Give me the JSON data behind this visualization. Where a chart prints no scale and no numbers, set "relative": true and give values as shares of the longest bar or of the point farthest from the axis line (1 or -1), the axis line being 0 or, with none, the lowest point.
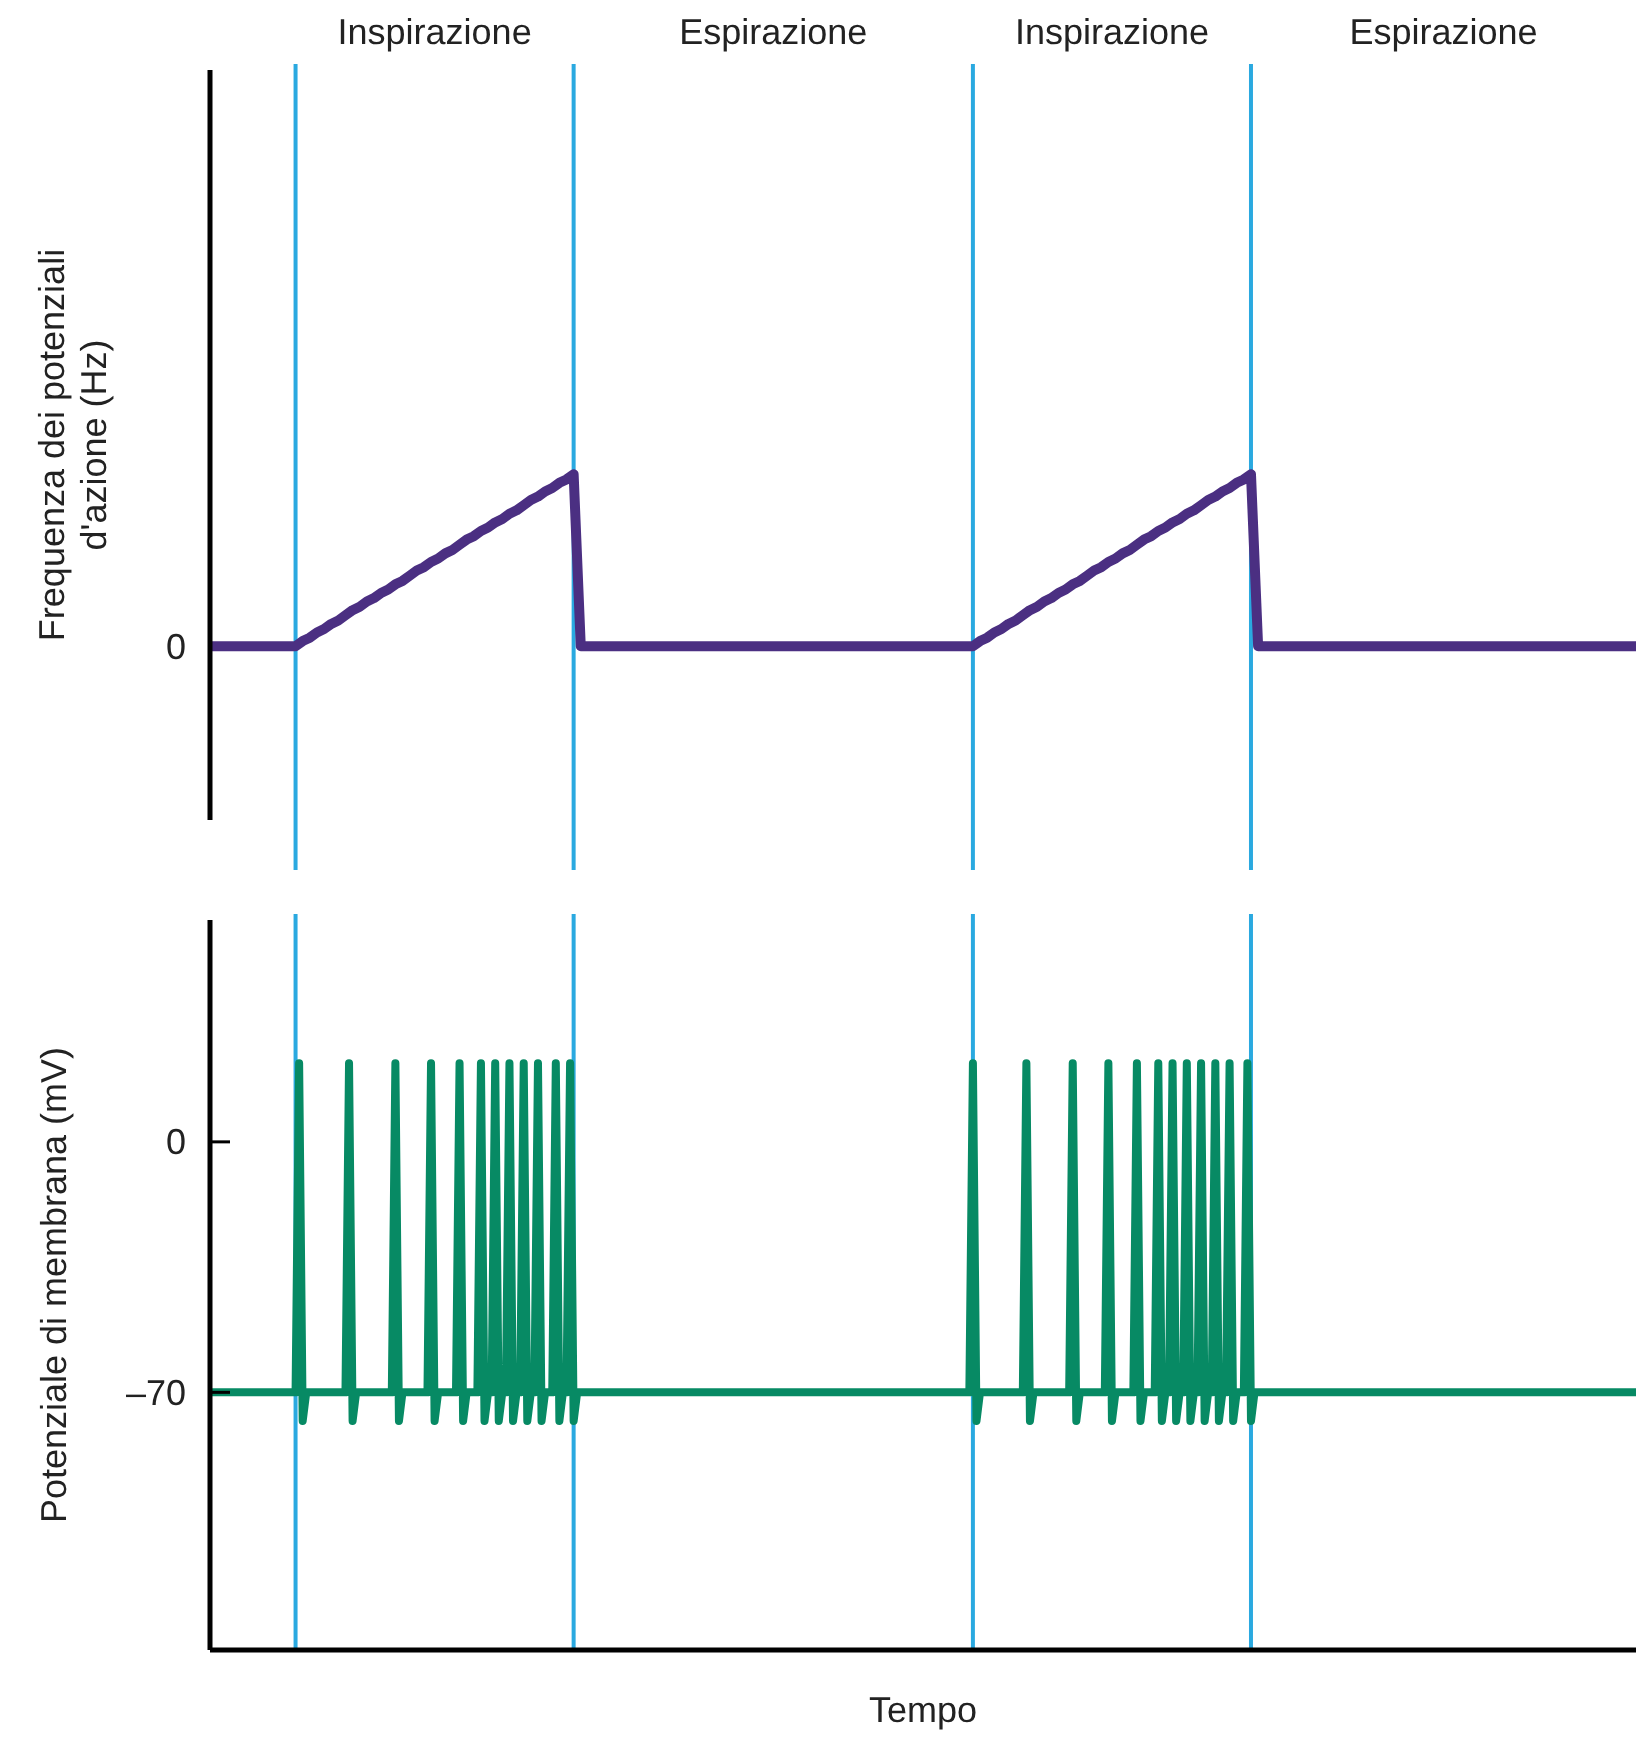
{
  "chart_data": [
    {
      "type": "line",
      "relative": true,
      "ylabel": "Frequenza dei potenziali d'azione (Hz)",
      "tick_labels": "y",
      "marker": "none",
      "line_style": "solid",
      "annotations": [
        "Inspirazione",
        "Espirazione",
        "Inspirazione",
        "Espirazione",
        "0"
      ],
      "categories": [
        null,
        null,
        null,
        null,
        null,
        null,
        null,
        null,
        null,
        null,
        null,
        null,
        null,
        null,
        null,
        null,
        null,
        null,
        null,
        null,
        null,
        null,
        null,
        null,
        null,
        null,
        null,
        null,
        null,
        null,
        null,
        null,
        null,
        null,
        null,
        null,
        null,
        null,
        null,
        null,
        null,
        null,
        null,
        null,
        null,
        null,
        null,
        null,
        null,
        null,
        null,
        null,
        null,
        null,
        null,
        null,
        null,
        null,
        null,
        null,
        null,
        null,
        null,
        null,
        null,
        null,
        null,
        null,
        null,
        null,
        null,
        null,
        null,
        null,
        null,
        null,
        null,
        null,
        null,
        null,
        null,
        null,
        null,
        null,
        null,
        null,
        null,
        null,
        null,
        null,
        null,
        null,
        null,
        null,
        null,
        null,
        null,
        null,
        null,
        null,
        null,
        null,
        null,
        null,
        null,
        null,
        null,
        null,
        null,
        null,
        null,
        null,
        null,
        null,
        null,
        null,
        null,
        null,
        null,
        null,
        null,
        null,
        null,
        null,
        null,
        null,
        null,
        null,
        null,
        null,
        null,
        null,
        null,
        null,
        null,
        null,
        null,
        null,
        null,
        null,
        null,
        null,
        null,
        null,
        null,
        null,
        null,
        null,
        null,
        null,
        null,
        null,
        null,
        null,
        null,
        null,
        null,
        null,
        null,
        null,
        null,
        null,
        null,
        null,
        null,
        null,
        null,
        null,
        null,
        null,
        null,
        null,
        null,
        null,
        null,
        null,
        null,
        null,
        null,
        null,
        null,
        null,
        null,
        null,
        null,
        null,
        null,
        null,
        null,
        null,
        null,
        null,
        null,
        null,
        null,
        null,
        null,
        null,
        null,
        null,
        null
      ],
      "series": [
        {
          "color": "#4b2f82",
          "values": [
            0,
            0,
            0,
            0,
            0,
            0,
            0,
            0,
            0,
            0,
            0,
            0,
            0,
            0.03,
            0.05,
            0.08,
            0.1,
            0.13,
            0.15,
            0.18,
            0.21,
            0.23,
            0.26,
            0.28,
            0.31,
            0.33,
            0.36,
            0.38,
            0.41,
            0.44,
            0.46,
            0.49,
            0.51,
            0.54,
            0.56,
            0.59,
            0.62,
            0.64,
            0.67,
            0.69,
            0.72,
            0.74,
            0.77,
            0.79,
            0.82,
            0.85,
            0.87,
            0.9,
            0.92,
            0.95,
            0.97,
            1,
            0,
            0,
            0,
            0,
            0,
            0,
            0,
            0,
            0,
            0,
            0,
            0,
            0,
            0,
            0,
            0,
            0,
            0,
            0,
            0,
            0,
            0,
            0,
            0,
            0,
            0,
            0,
            0,
            0,
            0,
            0,
            0,
            0,
            0,
            0,
            0,
            0,
            0,
            0,
            0,
            0,
            0,
            0,
            0,
            0,
            0,
            0,
            0,
            0,
            0,
            0,
            0,
            0,
            0,
            0,
            0,
            0.03,
            0.05,
            0.08,
            0.1,
            0.13,
            0.15,
            0.18,
            0.21,
            0.23,
            0.26,
            0.28,
            0.31,
            0.33,
            0.36,
            0.38,
            0.41,
            0.44,
            0.46,
            0.49,
            0.51,
            0.54,
            0.56,
            0.59,
            0.62,
            0.64,
            0.67,
            0.69,
            0.72,
            0.74,
            0.77,
            0.79,
            0.82,
            0.85,
            0.87,
            0.9,
            0.92,
            0.95,
            0.97,
            1,
            0,
            0,
            0,
            0,
            0,
            0,
            0,
            0,
            0,
            0,
            0,
            0,
            0,
            0,
            0,
            0,
            0,
            0,
            0,
            0,
            0,
            0,
            0,
            0,
            0,
            0,
            0,
            0,
            0,
            0,
            0,
            0,
            0,
            0,
            0,
            0,
            0,
            0,
            0,
            0,
            0,
            0,
            0,
            0,
            0,
            0,
            0,
            0,
            0,
            0,
            0,
            0,
            0,
            0
          ]
        }
      ]
    },
    {
      "type": "line",
      "ylabel": "Potenziale di membrana (mV)",
      "xlabel": "Tempo",
      "ylim": [
        -142,
        62
      ],
      "yticks": [
        {
          "value": -70,
          "label": "–70"
        },
        0
      ],
      "tick_labels": "y",
      "grid": false,
      "marker": "none",
      "line_style": "solid",
      "categories": [
        null,
        null,
        null,
        null,
        null,
        null,
        null,
        null,
        null,
        null,
        null,
        null,
        null,
        null,
        null,
        null,
        null,
        null,
        null,
        null,
        null,
        null,
        null,
        null,
        null,
        null,
        null,
        null,
        null,
        null,
        null,
        null,
        null,
        null,
        null,
        null,
        null,
        null,
        null,
        null,
        null,
        null,
        null,
        null,
        null,
        null,
        null,
        null,
        null,
        null,
        null,
        null,
        null,
        null,
        null,
        null,
        null,
        null,
        null,
        null,
        null,
        null,
        null,
        null,
        null,
        null,
        null,
        null,
        null,
        null,
        null,
        null,
        null,
        null,
        null,
        null,
        null,
        null,
        null,
        null,
        null,
        null,
        null,
        null,
        null,
        null,
        null,
        null,
        null,
        null,
        null,
        null,
        null,
        null,
        null,
        null,
        null,
        null,
        null,
        null,
        null,
        null,
        null,
        null,
        null,
        null,
        null,
        null,
        null,
        null,
        null,
        null,
        null,
        null,
        null,
        null,
        null,
        null,
        null,
        null,
        null,
        null,
        null,
        null,
        null,
        null,
        null,
        null,
        null,
        null,
        null,
        null,
        null,
        null,
        null,
        null,
        null,
        null,
        null,
        null,
        null,
        null,
        null,
        null,
        null,
        null,
        null,
        null,
        null,
        null,
        null,
        null,
        null,
        null,
        null,
        null,
        null,
        null,
        null,
        null,
        null,
        null,
        null,
        null,
        null,
        null,
        null,
        null,
        null,
        null,
        null,
        null,
        null,
        null,
        null,
        null,
        null,
        null,
        null,
        null,
        null,
        null,
        null,
        null,
        null,
        null,
        null,
        null,
        null,
        null,
        null,
        null,
        null,
        null,
        null,
        null,
        null,
        null,
        null,
        null,
        null,
        null,
        null,
        null,
        null,
        null,
        null,
        null,
        null,
        null,
        null,
        null,
        null,
        null,
        null,
        null,
        null,
        null,
        null,
        null,
        null,
        null,
        null,
        null,
        null,
        null,
        null,
        null,
        null,
        null,
        null,
        null,
        null,
        null,
        null,
        null,
        null,
        null,
        null,
        null,
        null,
        null,
        null,
        null,
        null,
        null,
        null,
        null,
        null,
        null,
        null,
        null,
        null,
        null,
        null,
        null,
        null,
        null,
        null,
        null,
        null,
        null,
        null,
        null,
        null,
        null,
        null,
        null,
        null,
        null,
        null,
        null,
        null,
        null,
        null,
        null,
        null,
        null,
        null,
        null,
        null,
        null,
        null,
        null,
        null,
        null,
        null,
        null,
        null,
        null,
        null,
        null,
        null,
        null,
        null,
        null,
        null,
        null,
        null,
        null,
        null,
        null,
        null,
        null,
        null,
        null,
        null,
        null,
        null,
        null,
        null,
        null,
        null,
        null,
        null,
        null,
        null,
        null,
        null,
        null,
        null,
        null,
        null,
        null,
        null,
        null,
        null,
        null,
        null,
        null,
        null,
        null,
        null,
        null,
        null,
        null,
        null,
        null,
        null,
        null,
        null,
        null,
        null,
        null,
        null,
        null,
        null,
        null,
        null,
        null,
        null,
        null,
        null,
        null,
        null,
        null,
        null,
        null,
        null,
        null,
        null,
        null,
        null,
        null,
        null,
        null,
        null,
        null,
        null,
        null,
        null,
        null,
        null,
        null,
        null,
        null,
        null,
        null,
        null,
        null,
        null,
        null,
        null,
        null,
        null,
        null,
        null,
        null,
        null,
        null,
        null,
        null,
        null,
        null,
        null,
        null,
        null,
        null,
        null,
        null,
        null
      ],
      "series": [
        {
          "color": "#078a64",
          "values": [
            -70,
            -70,
            -70,
            -70,
            -70,
            -70,
            -70,
            -70,
            -70,
            -70,
            -70,
            -70,
            -70,
            -70,
            -70,
            -70,
            -70,
            -70,
            -70,
            -70,
            -70,
            -70,
            -70,
            -70,
            -70,
            22,
            -78,
            -70,
            -70,
            -70,
            -70,
            -70,
            -70,
            -70,
            -70,
            -70,
            -70,
            -70,
            -70,
            22,
            -78,
            -70,
            -70,
            -70,
            -70,
            -70,
            -70,
            -70,
            -70,
            -70,
            -70,
            -70,
            22,
            -78,
            -70,
            -70,
            -70,
            -70,
            -70,
            -70,
            -70,
            -70,
            22,
            -78,
            -70,
            -70,
            -70,
            -70,
            -70,
            -70,
            22,
            -78,
            -70,
            -70,
            -70,
            -70,
            22,
            -78,
            -70,
            -70,
            22,
            -78,
            -70,
            -70,
            22,
            -78,
            -70,
            -70,
            22,
            -78,
            -70,
            -70,
            22,
            -78,
            -70,
            -70,
            -70,
            22,
            -78,
            -70,
            -70,
            22,
            -78,
            -70,
            -70,
            -70,
            -70,
            -70,
            -70,
            -70,
            -70,
            -70,
            -70,
            -70,
            -70,
            -70,
            -70,
            -70,
            -70,
            -70,
            -70,
            -70,
            -70,
            -70,
            -70,
            -70,
            -70,
            -70,
            -70,
            -70,
            -70,
            -70,
            -70,
            -70,
            -70,
            -70,
            -70,
            -70,
            -70,
            -70,
            -70,
            -70,
            -70,
            -70,
            -70,
            -70,
            -70,
            -70,
            -70,
            -70,
            -70,
            -70,
            -70,
            -70,
            -70,
            -70,
            -70,
            -70,
            -70,
            -70,
            -70,
            -70,
            -70,
            -70,
            -70,
            -70,
            -70,
            -70,
            -70,
            -70,
            -70,
            -70,
            -70,
            -70,
            -70,
            -70,
            -70,
            -70,
            -70,
            -70,
            -70,
            -70,
            -70,
            -70,
            -70,
            -70,
            -70,
            -70,
            -70,
            -70,
            -70,
            -70,
            -70,
            -70,
            -70,
            -70,
            -70,
            -70,
            -70,
            -70,
            -70,
            -70,
            -70,
            -70,
            -70,
            -70,
            -70,
            -70,
            -70,
            -70,
            -70,
            -70,
            -70,
            -70,
            22,
            -78,
            -70,
            -70,
            -70,
            -70,
            -70,
            -70,
            -70,
            -70,
            -70,
            -70,
            -70,
            -70,
            -70,
            22,
            -78,
            -70,
            -70,
            -70,
            -70,
            -70,
            -70,
            -70,
            -70,
            -70,
            -70,
            -70,
            22,
            -78,
            -70,
            -70,
            -70,
            -70,
            -70,
            -70,
            -70,
            -70,
            22,
            -78,
            -70,
            -70,
            -70,
            -70,
            -70,
            -70,
            22,
            -78,
            -70,
            -70,
            -70,
            -70,
            22,
            -78,
            -70,
            -70,
            22,
            -78,
            -70,
            -70,
            22,
            -78,
            -70,
            -70,
            22,
            -78,
            -70,
            -70,
            22,
            -78,
            -70,
            -70,
            22,
            -78,
            -70,
            -70,
            -70,
            22,
            -78,
            -70,
            -70,
            -70,
            -70,
            -70,
            -70,
            -70,
            -70,
            -70,
            -70,
            -70,
            -70,
            -70,
            -70,
            -70,
            -70,
            -70,
            -70,
            -70,
            -70,
            -70,
            -70,
            -70,
            -70,
            -70,
            -70,
            -70,
            -70,
            -70,
            -70,
            -70,
            -70,
            -70,
            -70,
            -70,
            -70,
            -70,
            -70,
            -70,
            -70,
            -70,
            -70,
            -70,
            -70,
            -70,
            -70,
            -70,
            -70,
            -70,
            -70,
            -70,
            -70,
            -70,
            -70,
            -70,
            -70,
            -70,
            -70,
            -70,
            -70,
            -70,
            -70,
            -70,
            -70,
            -70,
            -70,
            -70,
            -70,
            -70,
            -70,
            -70,
            -70,
            -70,
            -70,
            -70,
            -70,
            -70,
            -70,
            -70,
            -70,
            -70,
            -70,
            -70,
            -70,
            -70,
            -70,
            -70,
            -70,
            -70,
            -70,
            -70,
            -70,
            -70,
            -70,
            -70,
            -70,
            -70,
            -70,
            -70,
            -70,
            -70,
            -70,
            -70,
            -70,
            -70,
            -70,
            -70,
            -70
          ]
        }
      ]
    }
  ]
}
